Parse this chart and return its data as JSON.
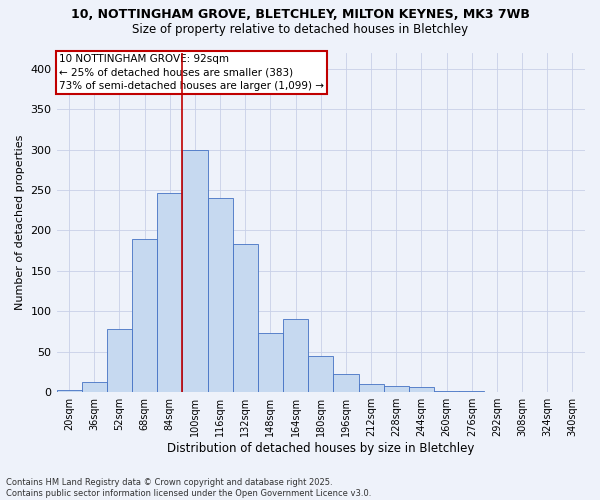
{
  "title_line1": "10, NOTTINGHAM GROVE, BLETCHLEY, MILTON KEYNES, MK3 7WB",
  "title_line2": "Size of property relative to detached houses in Bletchley",
  "xlabel": "Distribution of detached houses by size in Bletchley",
  "ylabel": "Number of detached properties",
  "categories": [
    "20sqm",
    "36sqm",
    "52sqm",
    "68sqm",
    "84sqm",
    "100sqm",
    "116sqm",
    "132sqm",
    "148sqm",
    "164sqm",
    "180sqm",
    "196sqm",
    "212sqm",
    "228sqm",
    "244sqm",
    "260sqm",
    "276sqm",
    "292sqm",
    "308sqm",
    "324sqm",
    "340sqm"
  ],
  "values": [
    3,
    13,
    78,
    190,
    246,
    300,
    240,
    183,
    73,
    90,
    45,
    22,
    10,
    8,
    6,
    2,
    1,
    0,
    0,
    0,
    0
  ],
  "bar_color": "#c6d9f0",
  "bar_edge_color": "#4472c4",
  "vline_color": "#c00000",
  "annotation_line1": "10 NOTTINGHAM GROVE: 92sqm",
  "annotation_line2": "← 25% of detached houses are smaller (383)",
  "annotation_line3": "73% of semi-detached houses are larger (1,099) →",
  "annotation_box_edge": "#c00000",
  "ylim": [
    0,
    420
  ],
  "yticks": [
    0,
    50,
    100,
    150,
    200,
    250,
    300,
    350,
    400
  ],
  "footer_line1": "Contains HM Land Registry data © Crown copyright and database right 2025.",
  "footer_line2": "Contains public sector information licensed under the Open Government Licence v3.0.",
  "bg_color": "#eef2fa",
  "grid_color": "#c8d0e8",
  "title1_fontsize": 9.0,
  "title2_fontsize": 8.5,
  "tick_fontsize": 7.0,
  "ylabel_fontsize": 8.0,
  "xlabel_fontsize": 8.5,
  "ann_fontsize": 7.5,
  "footer_fontsize": 6.0
}
